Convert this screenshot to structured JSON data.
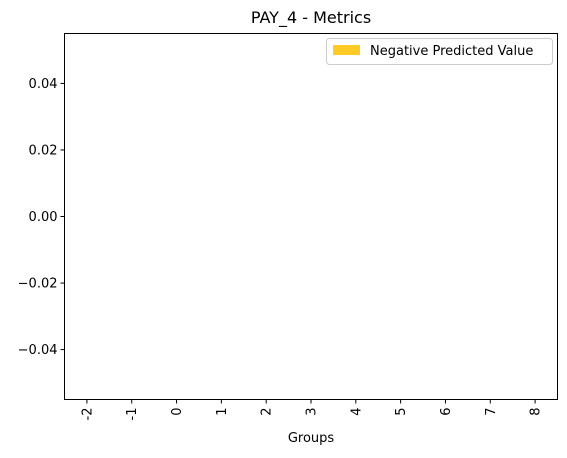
{
  "chart_data": {
    "type": "bar",
    "title": "PAY_4 - Metrics",
    "xlabel": "Groups",
    "ylabel": "",
    "categories": [
      "-2",
      "-1",
      "0",
      "1",
      "2",
      "3",
      "4",
      "5",
      "6",
      "7",
      "8"
    ],
    "series": [
      {
        "name": "Negative Predicted Value",
        "color": "#fdca26",
        "values": [
          null,
          null,
          null,
          null,
          null,
          null,
          null,
          null,
          null,
          null,
          null
        ]
      }
    ],
    "ylim": [
      -0.055,
      0.055
    ],
    "yticks": [
      0.04,
      0.02,
      0.0,
      -0.02,
      -0.04
    ],
    "ytick_labels": [
      "0.04",
      "0.02",
      "0.00",
      "−0.02",
      "−0.04"
    ],
    "grid": false,
    "legend_position": "top-right"
  }
}
